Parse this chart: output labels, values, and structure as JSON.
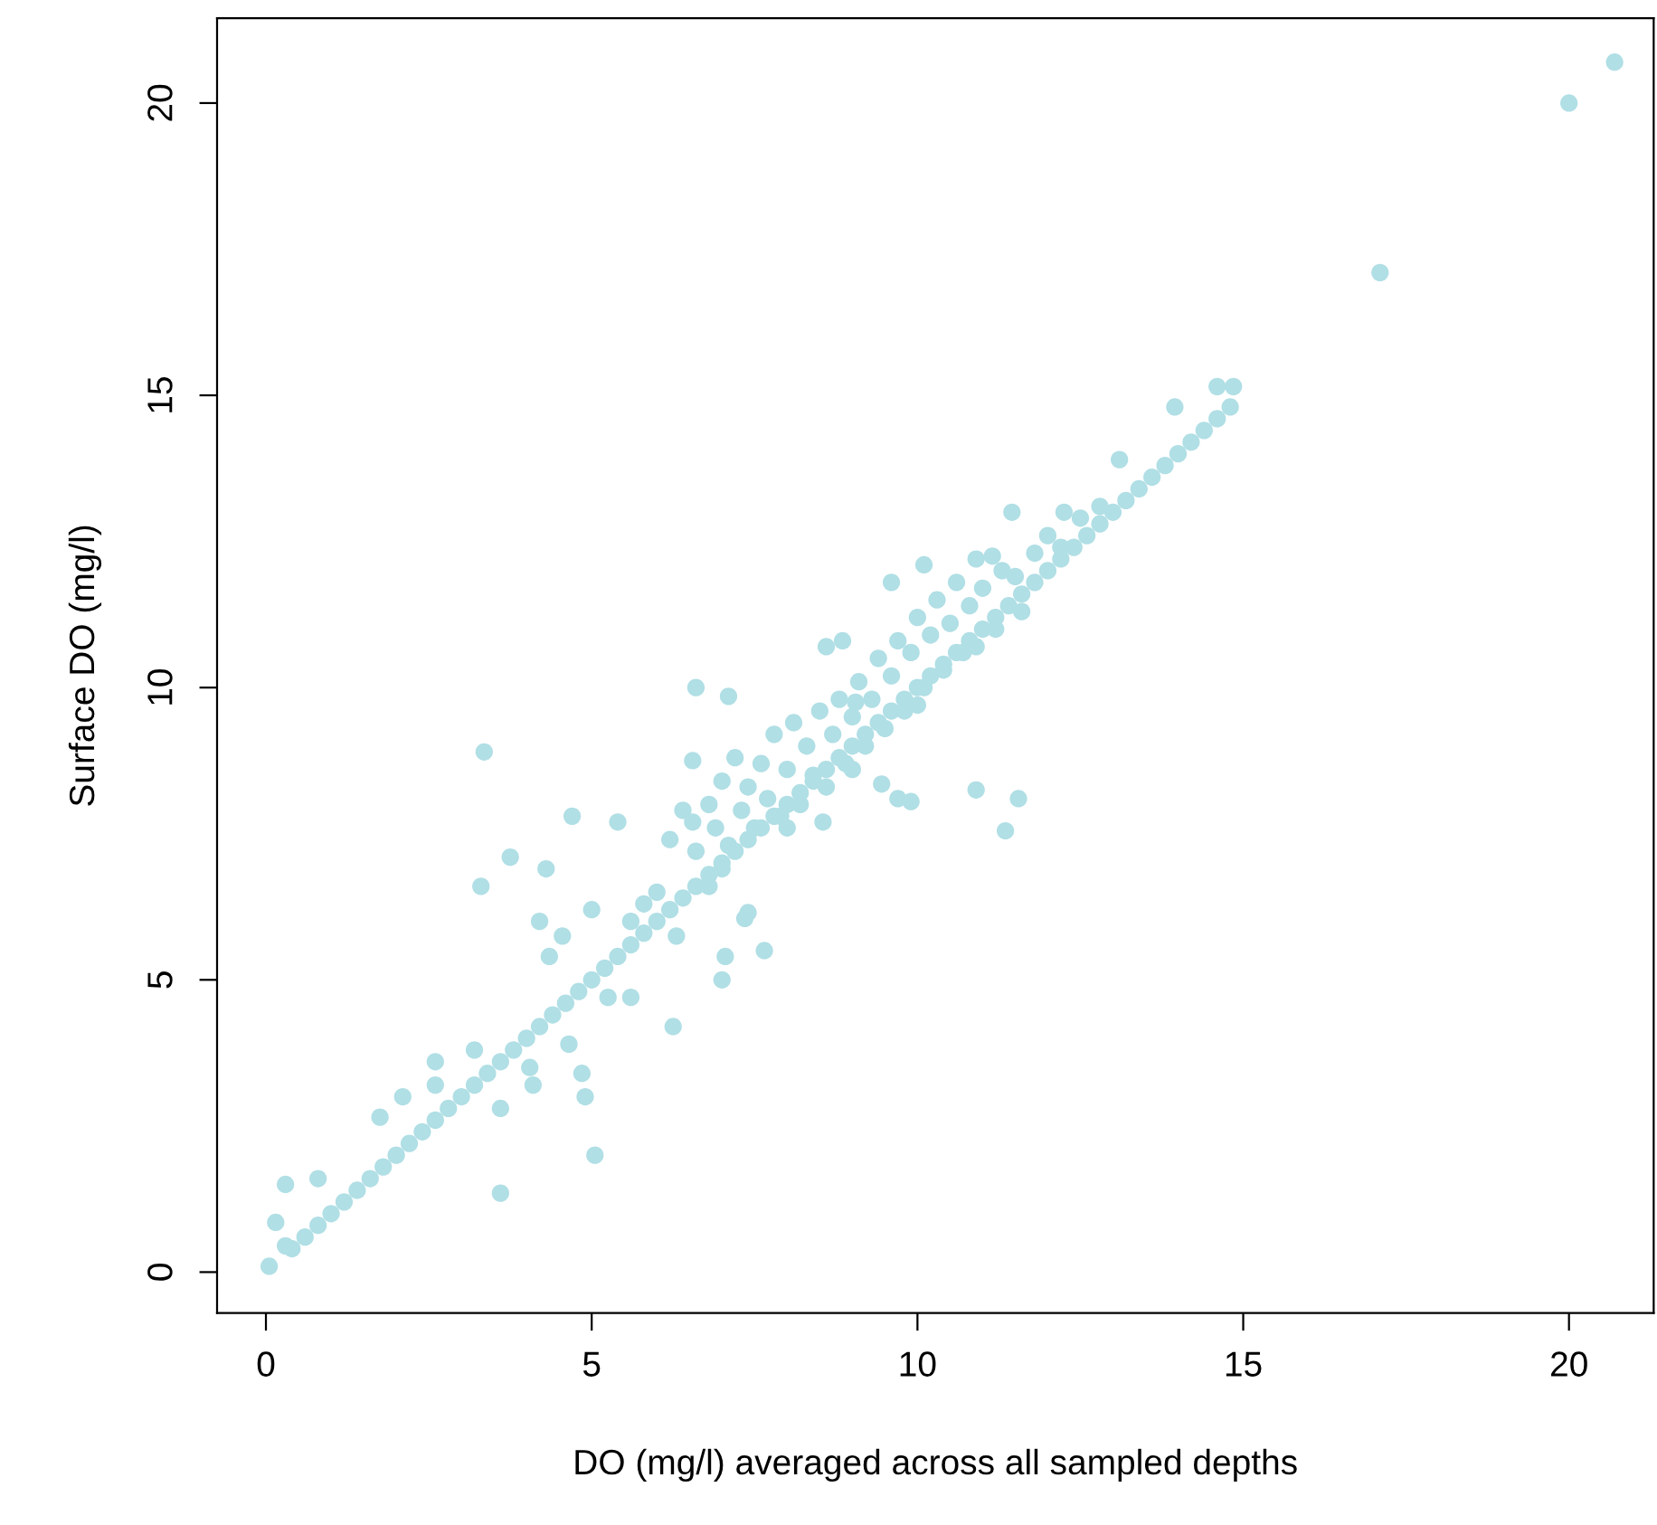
{
  "chart_data": {
    "type": "scatter",
    "xlabel": "DO (mg/l) averaged across all sampled depths",
    "ylabel": "Surface DO (mg/l)",
    "color": "#b0dfe5",
    "marker": "circle",
    "xlim": [
      -0.75,
      21.3
    ],
    "ylim": [
      -0.7,
      21.45
    ],
    "xticks": [
      0,
      5,
      10,
      15,
      20
    ],
    "yticks": [
      0,
      5,
      10,
      15,
      20
    ],
    "x": [
      0.4,
      0.6,
      0.8,
      1.0,
      1.2,
      1.4,
      1.6,
      1.8,
      2.0,
      2.2,
      2.4,
      2.6,
      2.8,
      3.0,
      3.2,
      3.4,
      3.6,
      3.8,
      4.0,
      4.2,
      4.4,
      4.6,
      4.8,
      5.0,
      5.2,
      5.4,
      5.6,
      5.8,
      6.0,
      6.2,
      6.4,
      6.6,
      6.8,
      7.0,
      7.2,
      7.4,
      7.6,
      7.8,
      8.0,
      8.2,
      8.4,
      8.6,
      8.8,
      9.0,
      9.2,
      9.4,
      9.6,
      9.8,
      10.0,
      10.2,
      10.4,
      10.6,
      10.8,
      11.0,
      11.2,
      11.4,
      11.6,
      11.8,
      12.0,
      12.2,
      12.4,
      12.6,
      12.8,
      13.0,
      13.2,
      13.4,
      13.6,
      13.8,
      14.0,
      14.2,
      14.4,
      14.6,
      14.8,
      6.2,
      6.4,
      6.6,
      6.8,
      6.9,
      7.0,
      7.1,
      7.2,
      7.3,
      7.4,
      7.5,
      7.6,
      7.7,
      7.8,
      7.9,
      8.0,
      8.1,
      8.2,
      8.3,
      8.4,
      8.5,
      8.6,
      8.7,
      8.8,
      8.9,
      9.0,
      9.1,
      9.2,
      9.3,
      9.4,
      9.5,
      9.6,
      9.7,
      9.8,
      9.9,
      10.0,
      10.1,
      10.2,
      10.3,
      10.4,
      10.5,
      10.6,
      10.7,
      10.8,
      10.9,
      11.0,
      11.2,
      11.3,
      11.5,
      11.6,
      11.8,
      12.0,
      12.2,
      12.5,
      12.8,
      6.0,
      5.8,
      5.6,
      7.0,
      8.0,
      9.0,
      10.0,
      0.05,
      0.15,
      0.3,
      0.8,
      0.3,
      1.75,
      2.1,
      2.6,
      2.6,
      3.2,
      3.35,
      3.6,
      3.6,
      3.3,
      3.75,
      4.05,
      4.1,
      4.2,
      4.3,
      4.35,
      4.55,
      4.7,
      4.65,
      4.85,
      4.9,
      5.05,
      5.0,
      5.25,
      5.4,
      5.6,
      6.25,
      6.3,
      6.6,
      6.55,
      6.55,
      6.8,
      7.05,
      7.0,
      7.1,
      7.65,
      7.35,
      7.4,
      8.55,
      8.6,
      8.85,
      9.6,
      9.05,
      9.45,
      9.7,
      9.9,
      10.9,
      11.55,
      11.35,
      10.1,
      10.9,
      11.45,
      11.15,
      12.25,
      13.1,
      13.95,
      14.6,
      14.85,
      17.1,
      20.0,
      20.7
    ],
    "values": [
      0.4,
      0.6,
      0.8,
      1.0,
      1.2,
      1.4,
      1.6,
      1.8,
      2.0,
      2.2,
      2.4,
      2.6,
      2.8,
      3.0,
      3.2,
      3.4,
      3.6,
      3.8,
      4.0,
      4.2,
      4.4,
      4.6,
      4.8,
      5.0,
      5.2,
      5.4,
      5.6,
      5.8,
      6.0,
      6.2,
      6.4,
      6.6,
      6.8,
      7.0,
      7.2,
      7.4,
      7.6,
      7.8,
      8.0,
      8.2,
      8.4,
      8.6,
      8.8,
      9.0,
      9.2,
      9.4,
      9.6,
      9.8,
      10.0,
      10.2,
      10.4,
      10.6,
      10.8,
      11.0,
      11.2,
      11.4,
      11.6,
      11.8,
      12.0,
      12.2,
      12.4,
      12.6,
      12.8,
      13.0,
      13.2,
      13.4,
      13.6,
      13.8,
      14.0,
      14.2,
      14.4,
      14.6,
      14.8,
      7.4,
      7.9,
      7.2,
      8.0,
      7.6,
      8.4,
      7.3,
      8.8,
      7.9,
      8.3,
      7.6,
      8.7,
      8.1,
      9.2,
      7.8,
      8.6,
      9.4,
      8.0,
      9.0,
      8.5,
      9.6,
      8.3,
      9.2,
      9.8,
      8.7,
      9.5,
      10.1,
      9.0,
      9.8,
      10.5,
      9.3,
      10.2,
      10.8,
      9.6,
      10.6,
      11.2,
      10.0,
      10.9,
      11.5,
      10.3,
      11.1,
      11.8,
      10.6,
      11.4,
      10.7,
      11.7,
      11.0,
      12.0,
      11.9,
      11.3,
      12.3,
      12.6,
      12.4,
      12.9,
      13.1,
      6.5,
      6.3,
      6.0,
      6.9,
      7.6,
      8.6,
      9.7,
      0.1,
      0.85,
      1.5,
      1.6,
      0.45,
      2.65,
      3.0,
      3.6,
      3.2,
      3.8,
      8.9,
      2.8,
      1.35,
      6.6,
      7.1,
      3.5,
      3.2,
      6.0,
      6.9,
      5.4,
      5.75,
      7.8,
      3.9,
      3.4,
      3.0,
      2.0,
      6.2,
      4.7,
      7.7,
      4.7,
      4.2,
      5.75,
      10.0,
      8.75,
      7.7,
      6.6,
      5.4,
      5.0,
      9.85,
      5.5,
      6.05,
      6.15,
      7.7,
      10.7,
      10.8,
      11.8,
      9.75,
      8.35,
      8.1,
      8.05,
      8.25,
      8.1,
      7.55,
      12.1,
      12.2,
      13.0,
      12.25,
      13.0,
      13.9,
      14.8,
      15.15,
      15.15,
      17.1,
      20.0,
      20.7
    ]
  }
}
